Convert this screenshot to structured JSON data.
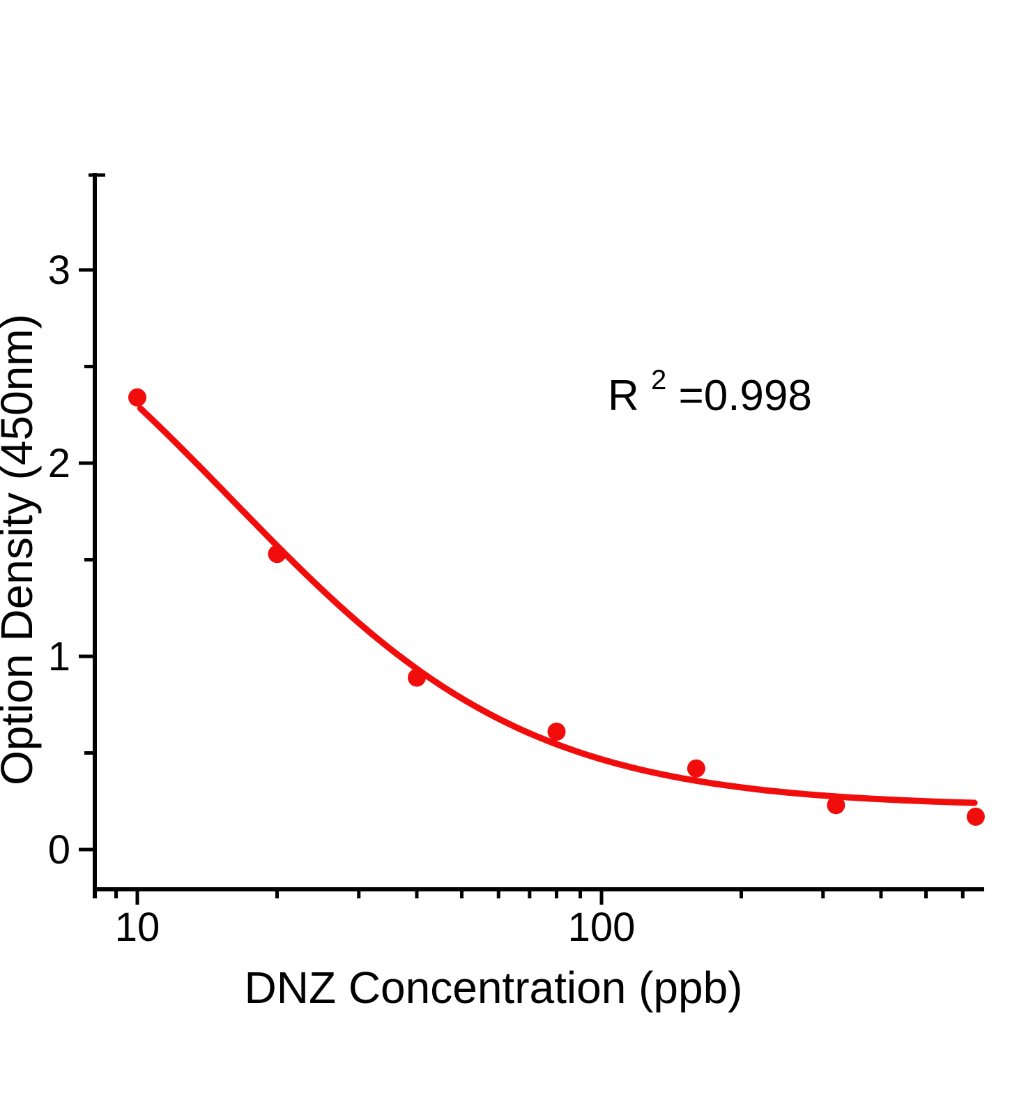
{
  "chart_data": {
    "type": "scatter",
    "title": "",
    "xlabel": "DNZ Concentration  (ppb)",
    "ylabel": "Option Density  (450nm)",
    "x_scale": "log",
    "y_scale": "linear",
    "xlim": [
      8,
      670
    ],
    "ylim": [
      -0.2,
      3.5
    ],
    "grid": false,
    "legend": "none",
    "background_color": "#ffffff",
    "axis_color": "#000000",
    "x_major_ticks": [
      10,
      100
    ],
    "x_major_tick_labels": [
      "10",
      "100"
    ],
    "x_minor_ticks": [
      9,
      20,
      30,
      40,
      50,
      60,
      70,
      80,
      90,
      200,
      300,
      400,
      500,
      600
    ],
    "y_major_ticks": [
      0,
      1,
      2,
      3
    ],
    "y_major_tick_labels": [
      "0",
      "1",
      "2",
      "3"
    ],
    "y_minor_ticks": [
      0.5,
      1.5,
      2.5
    ],
    "series": [
      {
        "name": "standard-points",
        "type": "scatter",
        "color": "#f20d0d",
        "marker": "circle",
        "marker_radius": 13,
        "x": [
          10,
          20,
          40,
          80,
          160,
          320,
          640
        ],
        "y": [
          2.34,
          1.53,
          0.89,
          0.61,
          0.42,
          0.23,
          0.17
        ]
      },
      {
        "name": "4pl-fit-curve",
        "type": "line",
        "color": "#f20d0d",
        "stroke_width": 9,
        "fit": {
          "model": "4PL",
          "a": 3.4,
          "b": 1.35,
          "c": 16,
          "d": 0.22,
          "x_start": 10.15,
          "x_end": 636
        }
      }
    ],
    "annotation": {
      "base": "R",
      "sup": "2",
      "rest": "=0.998",
      "full_text": "R2=0.998"
    }
  }
}
